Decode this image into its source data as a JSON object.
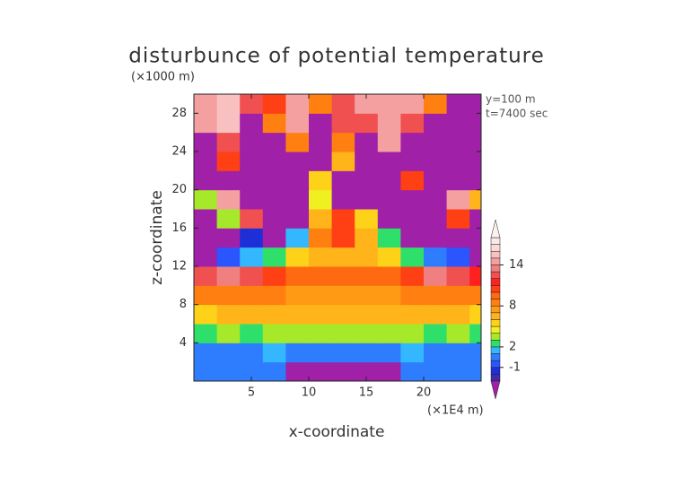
{
  "chart_data": {
    "type": "contour",
    "title": "disturbunce of potential temperature",
    "y_unit_label": "(×1000 m)",
    "x_unit_label": "(×1E4 m)",
    "annotations": [
      "y=100 m",
      "t=7400 sec"
    ],
    "x_label": "x-coordinate",
    "y_label": "z-coordinate",
    "xlim": [
      0,
      25
    ],
    "ylim": [
      0,
      30
    ],
    "xticks": [
      5,
      10,
      15,
      20
    ],
    "yticks": [
      4,
      8,
      12,
      16,
      20,
      24,
      28
    ],
    "x": [
      1,
      3,
      5,
      7,
      9,
      11,
      13,
      15,
      17,
      19,
      21,
      23,
      25
    ],
    "y": [
      1,
      3,
      5,
      7,
      9,
      11,
      13,
      15,
      17,
      19,
      21,
      23,
      25,
      27,
      29
    ],
    "z": [
      [
        0,
        0,
        0,
        0,
        -4,
        -4,
        -4,
        -4,
        -4,
        0,
        0,
        0,
        0
      ],
      [
        0,
        0,
        0,
        1,
        0,
        0,
        0,
        0,
        0,
        1,
        0,
        0,
        0
      ],
      [
        2,
        3,
        2,
        3,
        3,
        3,
        3,
        3,
        3,
        3,
        2,
        3,
        2
      ],
      [
        5,
        6,
        6,
        6,
        6,
        6,
        6,
        6,
        6,
        6,
        6,
        6,
        5
      ],
      [
        8,
        8,
        8,
        8,
        7,
        7,
        7,
        7,
        7,
        8,
        8,
        8,
        8
      ],
      [
        12,
        13,
        12,
        10,
        9,
        9,
        9,
        9,
        9,
        10,
        13,
        12,
        11
      ],
      [
        -4,
        -1,
        1,
        2,
        5,
        6,
        6,
        6,
        5,
        2,
        0,
        -1,
        -4
      ],
      [
        -4,
        -4,
        -2,
        -4,
        1,
        8,
        10,
        6,
        2,
        -4,
        -4,
        -4,
        -4
      ],
      [
        -4,
        3,
        12,
        -4,
        -4,
        6,
        10,
        5,
        -4,
        -4,
        -4,
        10,
        -4
      ],
      [
        3,
        14,
        -4,
        -4,
        -4,
        4,
        -4,
        -4,
        -4,
        -4,
        -4,
        14,
        6
      ],
      [
        -4,
        -4,
        -4,
        -4,
        -4,
        5,
        -4,
        -4,
        -4,
        10,
        -4,
        -4,
        -4
      ],
      [
        -4,
        10,
        -4,
        -4,
        -4,
        -4,
        6,
        -4,
        -4,
        -4,
        -4,
        -4,
        -4
      ],
      [
        -4,
        12,
        -4,
        -4,
        8,
        -4,
        8,
        -4,
        14,
        -4,
        -4,
        -4,
        -4
      ],
      [
        14,
        15,
        -4,
        8,
        14,
        -4,
        12,
        12,
        14,
        12,
        -4,
        -4,
        -4
      ],
      [
        14,
        15,
        12,
        10,
        14,
        8,
        12,
        14,
        14,
        14,
        8,
        -4,
        -4
      ]
    ],
    "colorbar": {
      "levels": [
        -3,
        -2,
        -1,
        0,
        1,
        2,
        3,
        4,
        5,
        6,
        7,
        8,
        9,
        10,
        11,
        12,
        13,
        14,
        15,
        16,
        17,
        18
      ],
      "colors": [
        "#3c2bb0",
        "#1f2fd8",
        "#2a55ff",
        "#2f7dff",
        "#33b8ff",
        "#2ee06a",
        "#a6e82a",
        "#f0f020",
        "#ffd21a",
        "#ffb41a",
        "#ff9a14",
        "#ff8010",
        "#ff6a10",
        "#ff3f14",
        "#ff2020",
        "#f05050",
        "#f08080",
        "#f5a0a0",
        "#f8c0c0",
        "#fbdada",
        "#fde8e8"
      ],
      "under_color": "#a020a8",
      "over_color": "#fff0f0",
      "ticks": [
        -1,
        2,
        8,
        14
      ]
    }
  }
}
